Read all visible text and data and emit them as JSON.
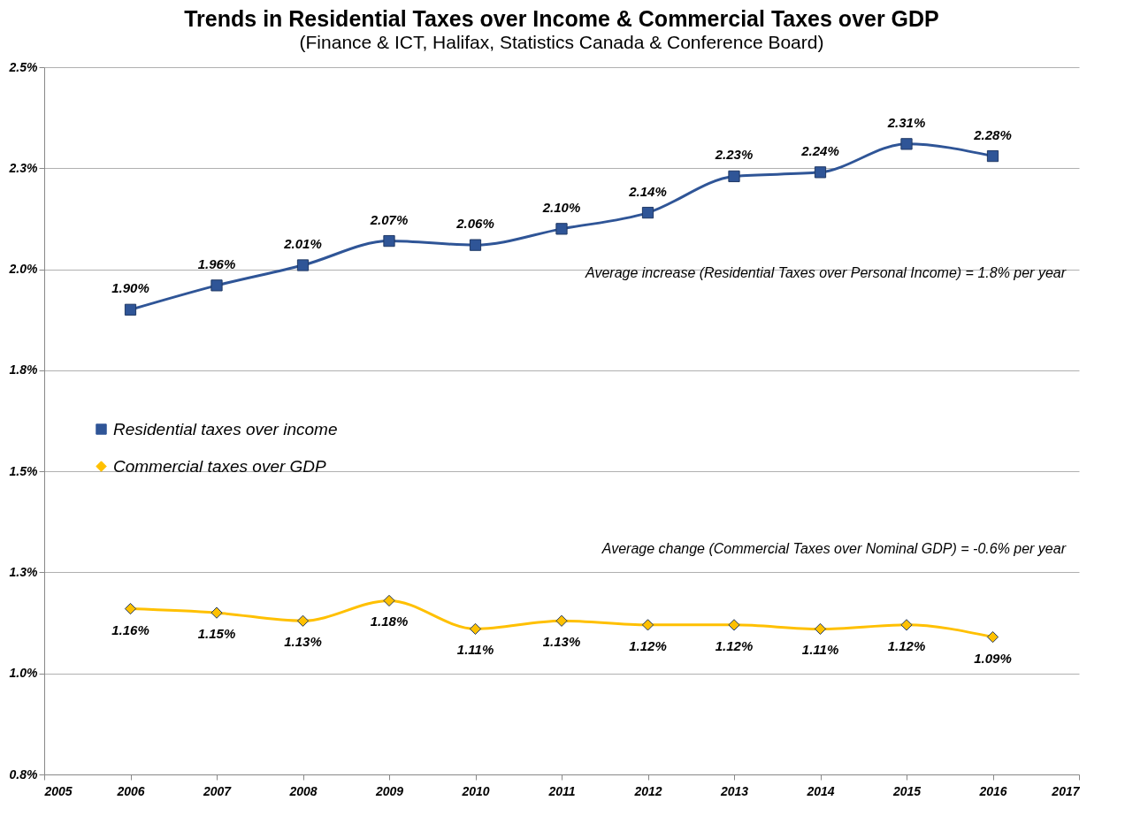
{
  "chart_data": {
    "type": "line",
    "title": "Trends in Residential Taxes over Income & Commercial Taxes over GDP",
    "subtitle": "(Finance & ICT, Halifax, Statistics Canada & Conference Board)",
    "x": [
      2006,
      2007,
      2008,
      2009,
      2010,
      2011,
      2012,
      2013,
      2014,
      2015,
      2016
    ],
    "series": [
      {
        "name": "Residential taxes over income",
        "color": "#2f5597",
        "marker": "square",
        "values": [
          1.9,
          1.96,
          2.01,
          2.07,
          2.06,
          2.1,
          2.14,
          2.23,
          2.24,
          2.31,
          2.28
        ],
        "value_labels": [
          "1.90%",
          "1.96%",
          "2.01%",
          "2.07%",
          "2.06%",
          "2.10%",
          "2.14%",
          "2.23%",
          "2.24%",
          "2.31%",
          "2.28%"
        ]
      },
      {
        "name": "Commercial taxes over GDP",
        "color": "#ffc000",
        "marker": "diamond",
        "values": [
          1.16,
          1.15,
          1.13,
          1.18,
          1.11,
          1.13,
          1.12,
          1.12,
          1.11,
          1.12,
          1.09
        ],
        "value_labels": [
          "1.16%",
          "1.15%",
          "1.13%",
          "1.18%",
          "1.11%",
          "1.13%",
          "1.12%",
          "1.12%",
          "1.11%",
          "1.12%",
          "1.09%"
        ]
      }
    ],
    "xlim": [
      2005,
      2017
    ],
    "xticks": [
      2005,
      2006,
      2007,
      2008,
      2009,
      2010,
      2011,
      2012,
      2013,
      2014,
      2015,
      2016,
      2017
    ],
    "ylim": [
      0.75,
      2.5
    ],
    "yticks": [
      {
        "value": 0.75,
        "label": "0.8%"
      },
      {
        "value": 1.0,
        "label": "1.0%"
      },
      {
        "value": 1.25,
        "label": "1.3%"
      },
      {
        "value": 1.5,
        "label": "1.5%"
      },
      {
        "value": 1.75,
        "label": "1.8%"
      },
      {
        "value": 2.0,
        "label": "2.0%"
      },
      {
        "value": 2.25,
        "label": "2.3%"
      },
      {
        "value": 2.5,
        "label": "2.5%"
      }
    ],
    "annotations": [
      "Average increase (Residential Taxes over Personal Income) = 1.8% per year",
      "Average change (Commercial Taxes over Nominal GDP) = -0.6% per year"
    ],
    "grid": "y",
    "legend": "left",
    "line_style": "solid"
  }
}
